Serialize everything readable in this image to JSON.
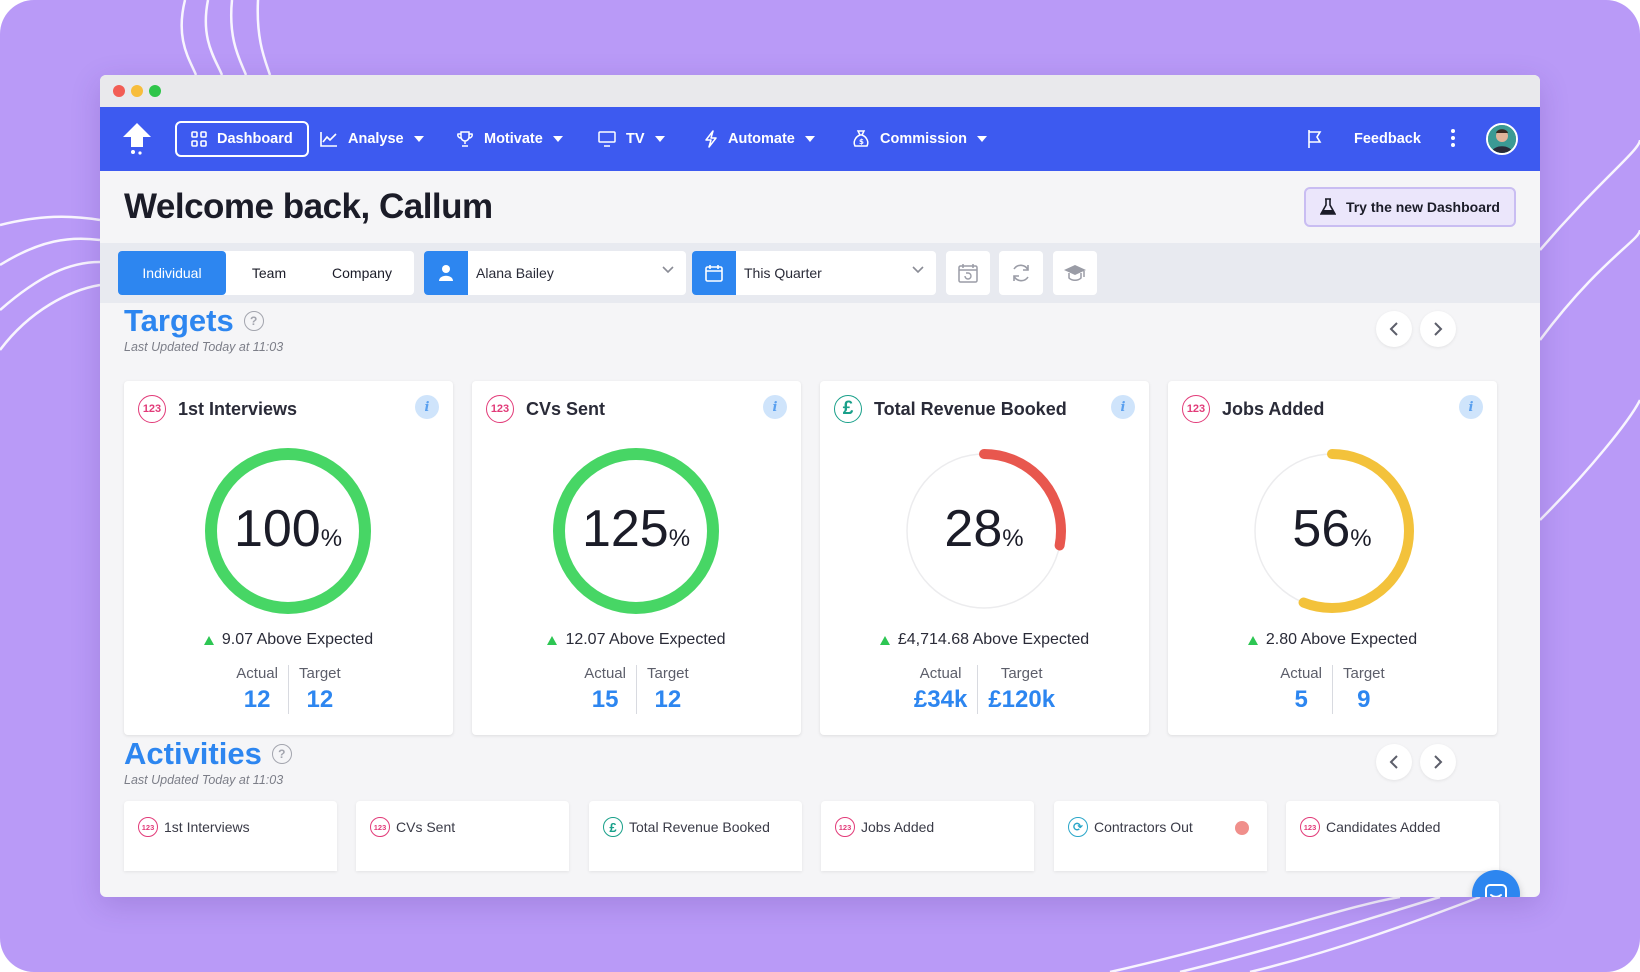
{
  "colors": {
    "frame": "#b99af7",
    "nav": "#3d5af0",
    "accent": "#2d86f0",
    "green": "#2dc653"
  },
  "nav": {
    "dashboard": "Dashboard",
    "analyse": "Analyse",
    "motivate": "Motivate",
    "tv": "TV",
    "automate": "Automate",
    "commission": "Commission",
    "feedback": "Feedback"
  },
  "header": {
    "welcome": "Welcome back, Callum",
    "try_new": "Try the new Dashboard"
  },
  "filters": {
    "scope_tabs": [
      "Individual",
      "Team",
      "Company"
    ],
    "selected_scope": "Individual",
    "user": "Alana Bailey",
    "period": "This Quarter"
  },
  "targets": {
    "title": "Targets",
    "help": "?",
    "updated": "Last Updated Today at 11:03",
    "cards": [
      {
        "badge": "123",
        "title": "1st Interviews",
        "info": "i",
        "percent": "100",
        "percent_value": 100,
        "unit": "%",
        "above": "9.07 Above Expected",
        "actual_label": "Actual",
        "actual": "12",
        "target_label": "Target",
        "target": "12",
        "color": "#47d665"
      },
      {
        "badge": "123",
        "title": "CVs Sent",
        "info": "i",
        "percent": "125",
        "percent_value": 125,
        "unit": "%",
        "above": "12.07 Above Expected",
        "actual_label": "Actual",
        "actual": "15",
        "target_label": "Target",
        "target": "12",
        "color": "#47d665"
      },
      {
        "badge": "£",
        "title": "Total Revenue Booked",
        "info": "i",
        "percent": "28",
        "percent_value": 28,
        "unit": "%",
        "above": "£4,714.68 Above Expected",
        "actual_label": "Actual",
        "actual": "£34k",
        "target_label": "Target",
        "target": "£120k",
        "color": "#e8574e"
      },
      {
        "badge": "123",
        "title": "Jobs Added",
        "info": "i",
        "percent": "56",
        "percent_value": 56,
        "unit": "%",
        "above": "2.80 Above Expected",
        "actual_label": "Actual",
        "actual": "5",
        "target_label": "Target",
        "target": "9",
        "color": "#f3c23b"
      }
    ]
  },
  "activities": {
    "title": "Activities",
    "help": "?",
    "updated": "Last Updated Today at 11:03",
    "items": [
      {
        "badge": "123",
        "label": "1st Interviews"
      },
      {
        "badge": "123",
        "label": "CVs Sent"
      },
      {
        "badge": "£",
        "label": "Total Revenue Booked"
      },
      {
        "badge": "123",
        "label": "Jobs Added"
      },
      {
        "badge": "⟳",
        "label": "Contractors Out"
      },
      {
        "badge": "123",
        "label": "Candidates Added"
      }
    ]
  }
}
